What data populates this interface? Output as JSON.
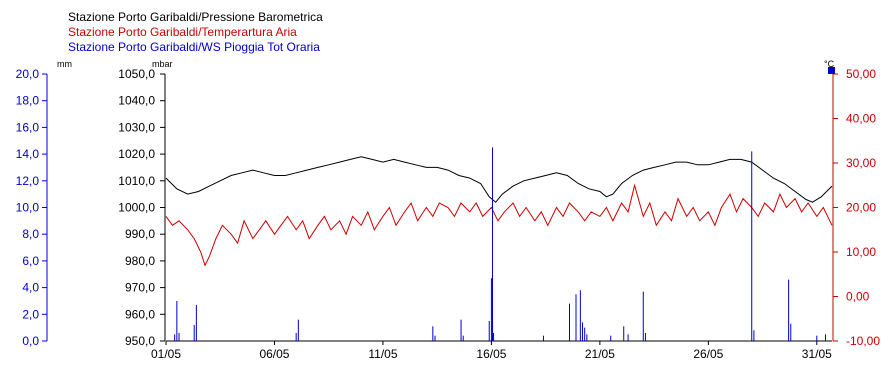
{
  "legend": [
    {
      "label": "Stazione Porto Garibaldi/Pressione Barometrica",
      "color": "#000000"
    },
    {
      "label": "Stazione Porto Garibaldi/Temperartura Aria",
      "color": "#cc0000"
    },
    {
      "label": "Stazione Porto Garibaldi/WS Pioggia Tot Oraria",
      "color": "#0000cc"
    }
  ],
  "chart_data": {
    "type": "line",
    "x_ticks": [
      "01/05",
      "06/05",
      "11/05",
      "16/05",
      "21/05",
      "26/05",
      "31/05"
    ],
    "x_tick_days": [
      1,
      6,
      11,
      16,
      21,
      26,
      31
    ],
    "xlim_days": [
      1,
      31.7
    ],
    "axes": {
      "rain": {
        "unit": "mm",
        "color": "#0000cc",
        "ylim": [
          0,
          20
        ],
        "ticks": [
          "0,0",
          "2,0",
          "4,0",
          "6,0",
          "8,0",
          "10,0",
          "12,0",
          "14,0",
          "16,0",
          "18,0",
          "20,0"
        ]
      },
      "pressure": {
        "unit": "mbar",
        "color": "#000000",
        "ylim": [
          950,
          1050
        ],
        "ticks": [
          "950,0",
          "960,0",
          "970,0",
          "980,0",
          "990,0",
          "1000,0",
          "1010,0",
          "1020,0",
          "1030,0",
          "1040,0",
          "1050,0"
        ]
      },
      "temperature": {
        "unit": "°C",
        "color": "#cc0000",
        "ylim": [
          -10,
          50
        ],
        "ticks": [
          "-10,00",
          "0,00",
          "10,00",
          "20,00",
          "30,00",
          "40,00",
          "50,00"
        ]
      }
    },
    "series": [
      {
        "name": "Stazione Porto Garibaldi/Pressione Barometrica",
        "axis": "pressure",
        "color": "#000000",
        "points": [
          [
            1.0,
            1011
          ],
          [
            1.5,
            1007
          ],
          [
            2.0,
            1005
          ],
          [
            2.5,
            1006
          ],
          [
            3.0,
            1008
          ],
          [
            3.5,
            1010
          ],
          [
            4.0,
            1012
          ],
          [
            4.5,
            1013
          ],
          [
            5.0,
            1014
          ],
          [
            5.5,
            1013
          ],
          [
            6.0,
            1012
          ],
          [
            6.5,
            1012
          ],
          [
            7.0,
            1013
          ],
          [
            7.5,
            1014
          ],
          [
            8.0,
            1015
          ],
          [
            8.5,
            1016
          ],
          [
            9.0,
            1017
          ],
          [
            9.5,
            1018
          ],
          [
            10.0,
            1019
          ],
          [
            10.5,
            1018
          ],
          [
            11.0,
            1017
          ],
          [
            11.5,
            1018
          ],
          [
            12.0,
            1017
          ],
          [
            12.5,
            1016
          ],
          [
            13.0,
            1015
          ],
          [
            13.5,
            1015
          ],
          [
            14.0,
            1014
          ],
          [
            14.5,
            1012
          ],
          [
            15.0,
            1011
          ],
          [
            15.5,
            1009
          ],
          [
            15.9,
            1004
          ],
          [
            16.2,
            1002
          ],
          [
            16.5,
            1005
          ],
          [
            17.0,
            1008
          ],
          [
            17.5,
            1010
          ],
          [
            18.0,
            1011
          ],
          [
            18.5,
            1012
          ],
          [
            19.0,
            1013
          ],
          [
            19.5,
            1012
          ],
          [
            20.0,
            1009
          ],
          [
            20.5,
            1007
          ],
          [
            21.0,
            1006
          ],
          [
            21.3,
            1004
          ],
          [
            21.6,
            1005
          ],
          [
            22.0,
            1009
          ],
          [
            22.5,
            1012
          ],
          [
            23.0,
            1014
          ],
          [
            23.5,
            1015
          ],
          [
            24.0,
            1016
          ],
          [
            24.5,
            1017
          ],
          [
            25.0,
            1017
          ],
          [
            25.5,
            1016
          ],
          [
            26.0,
            1016
          ],
          [
            26.5,
            1017
          ],
          [
            27.0,
            1018
          ],
          [
            27.5,
            1018
          ],
          [
            28.0,
            1017
          ],
          [
            28.5,
            1014
          ],
          [
            29.0,
            1011
          ],
          [
            29.5,
            1009
          ],
          [
            30.0,
            1006
          ],
          [
            30.5,
            1003
          ],
          [
            30.8,
            1002
          ],
          [
            31.2,
            1004
          ],
          [
            31.7,
            1008
          ]
        ]
      },
      {
        "name": "Stazione Porto Garibaldi/Temperartura Aria",
        "axis": "temperature",
        "color": "#cc0000",
        "points": [
          [
            1.0,
            18
          ],
          [
            1.3,
            16
          ],
          [
            1.6,
            17
          ],
          [
            2.0,
            15
          ],
          [
            2.3,
            13
          ],
          [
            2.6,
            10
          ],
          [
            2.8,
            7
          ],
          [
            3.0,
            9
          ],
          [
            3.3,
            13
          ],
          [
            3.6,
            16
          ],
          [
            4.0,
            14
          ],
          [
            4.3,
            12
          ],
          [
            4.6,
            17
          ],
          [
            5.0,
            13
          ],
          [
            5.3,
            15
          ],
          [
            5.6,
            17
          ],
          [
            6.0,
            14
          ],
          [
            6.3,
            16
          ],
          [
            6.6,
            18
          ],
          [
            7.0,
            15
          ],
          [
            7.3,
            17
          ],
          [
            7.6,
            13
          ],
          [
            8.0,
            16
          ],
          [
            8.3,
            18
          ],
          [
            8.6,
            15
          ],
          [
            9.0,
            17
          ],
          [
            9.3,
            14
          ],
          [
            9.6,
            18
          ],
          [
            10.0,
            16
          ],
          [
            10.3,
            19
          ],
          [
            10.6,
            15
          ],
          [
            11.0,
            18
          ],
          [
            11.3,
            20
          ],
          [
            11.6,
            16
          ],
          [
            12.0,
            19
          ],
          [
            12.3,
            21
          ],
          [
            12.6,
            17
          ],
          [
            13.0,
            20
          ],
          [
            13.3,
            18
          ],
          [
            13.6,
            21
          ],
          [
            14.0,
            20
          ],
          [
            14.3,
            18
          ],
          [
            14.6,
            21
          ],
          [
            15.0,
            19
          ],
          [
            15.3,
            21
          ],
          [
            15.6,
            18
          ],
          [
            16.0,
            20
          ],
          [
            16.3,
            17
          ],
          [
            16.6,
            19
          ],
          [
            17.0,
            21
          ],
          [
            17.3,
            18
          ],
          [
            17.6,
            20
          ],
          [
            18.0,
            17
          ],
          [
            18.3,
            19
          ],
          [
            18.6,
            16
          ],
          [
            19.0,
            20
          ],
          [
            19.3,
            18
          ],
          [
            19.6,
            21
          ],
          [
            20.0,
            19
          ],
          [
            20.3,
            17
          ],
          [
            20.6,
            19
          ],
          [
            21.0,
            18
          ],
          [
            21.3,
            20
          ],
          [
            21.6,
            17
          ],
          [
            22.0,
            21
          ],
          [
            22.3,
            19
          ],
          [
            22.6,
            25
          ],
          [
            23.0,
            18
          ],
          [
            23.3,
            21
          ],
          [
            23.6,
            16
          ],
          [
            24.0,
            19
          ],
          [
            24.3,
            17
          ],
          [
            24.6,
            22
          ],
          [
            25.0,
            18
          ],
          [
            25.3,
            20
          ],
          [
            25.6,
            17
          ],
          [
            26.0,
            19
          ],
          [
            26.3,
            16
          ],
          [
            26.6,
            20
          ],
          [
            27.0,
            23
          ],
          [
            27.3,
            19
          ],
          [
            27.6,
            22
          ],
          [
            28.0,
            20
          ],
          [
            28.3,
            18
          ],
          [
            28.6,
            21
          ],
          [
            29.0,
            19
          ],
          [
            29.3,
            23
          ],
          [
            29.6,
            20
          ],
          [
            30.0,
            22
          ],
          [
            30.3,
            19
          ],
          [
            30.6,
            21
          ],
          [
            31.0,
            18
          ],
          [
            31.3,
            20
          ],
          [
            31.7,
            16
          ]
        ]
      },
      {
        "name": "Stazione Porto Garibaldi/WS Pioggia Tot Oraria",
        "axis": "rain",
        "type": "bar",
        "color": "#0000cc",
        "points": [
          [
            1.4,
            0.5
          ],
          [
            1.5,
            3.0
          ],
          [
            1.6,
            0.6
          ],
          [
            2.3,
            1.2
          ],
          [
            2.4,
            2.7
          ],
          [
            7.0,
            0.6
          ],
          [
            7.1,
            1.6
          ],
          [
            13.3,
            1.1
          ],
          [
            13.4,
            0.4
          ],
          [
            14.6,
            1.6
          ],
          [
            14.7,
            0.4
          ],
          [
            15.9,
            1.5
          ],
          [
            16.0,
            4.7
          ],
          [
            16.05,
            14.5
          ],
          [
            16.1,
            0.6
          ],
          [
            18.4,
            0.4
          ],
          [
            19.6,
            2.8
          ],
          [
            19.9,
            3.5
          ],
          [
            20.1,
            3.8
          ],
          [
            20.2,
            1.4
          ],
          [
            20.3,
            1.0
          ],
          [
            20.4,
            0.5
          ],
          [
            21.5,
            0.4
          ],
          [
            22.1,
            1.1
          ],
          [
            22.3,
            0.5
          ],
          [
            23.0,
            3.7
          ],
          [
            23.1,
            0.6
          ],
          [
            28.0,
            14.2
          ],
          [
            28.1,
            0.8
          ],
          [
            29.7,
            4.6
          ],
          [
            29.8,
            1.3
          ],
          [
            31.0,
            0.4
          ],
          [
            31.4,
            0.5
          ]
        ]
      }
    ]
  }
}
